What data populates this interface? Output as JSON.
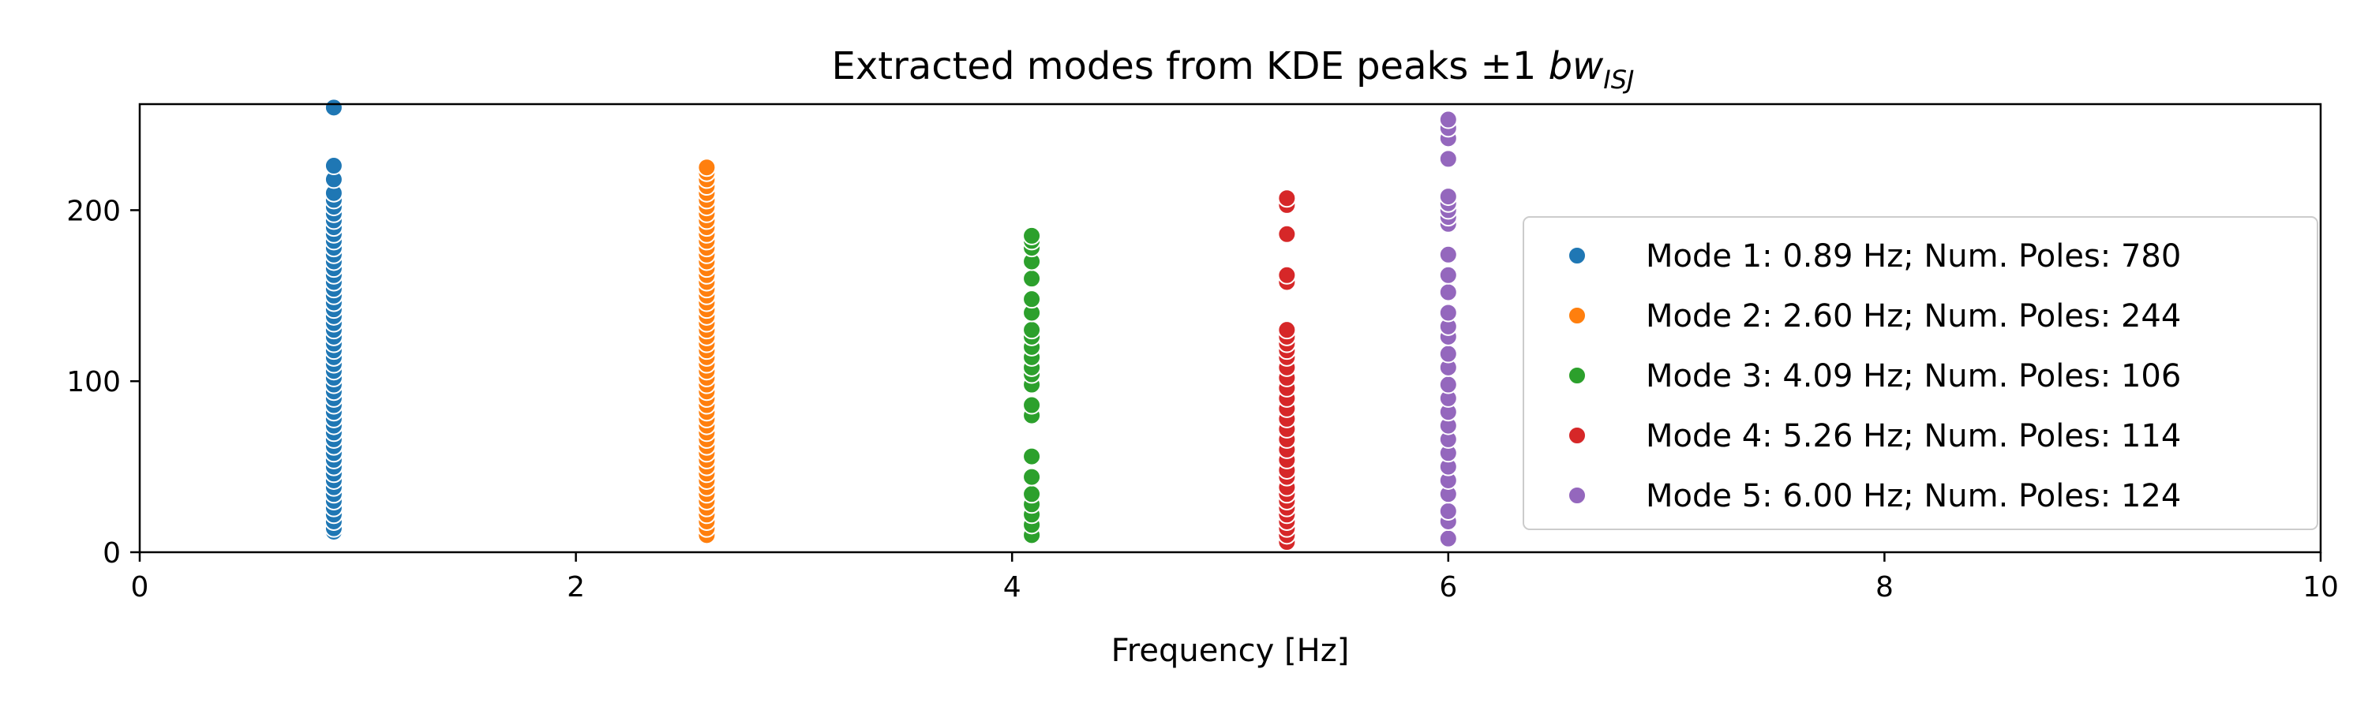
{
  "chart_data": {
    "type": "scatter",
    "title": {
      "prefix": "Extracted modes from KDE peaks ±1 ",
      "math": "bw",
      "math_subscript": "ISJ"
    },
    "xlabel": "Frequency [Hz]",
    "ylabel": "",
    "xlim": [
      0,
      10
    ],
    "ylim": [
      0,
      262
    ],
    "xticks": [
      "0",
      "2",
      "4",
      "6",
      "8",
      "10"
    ],
    "yticks": [
      "0",
      "100",
      "200"
    ],
    "grid": false,
    "legend_position": "right",
    "series": [
      {
        "name": "Mode 1: 0.89 Hz; Num. Poles: 780",
        "color": "#1f77b4",
        "x": 0.89,
        "y": [
          12,
          14,
          18,
          22,
          26,
          30,
          34,
          38,
          42,
          46,
          50,
          54,
          58,
          62,
          66,
          70,
          74,
          78,
          82,
          86,
          90,
          94,
          98,
          102,
          106,
          110,
          114,
          118,
          122,
          126,
          130,
          134,
          138,
          142,
          146,
          150,
          154,
          158,
          162,
          166,
          170,
          174,
          178,
          182,
          186,
          190,
          194,
          198,
          202,
          206,
          210,
          218,
          226,
          260
        ]
      },
      {
        "name": "Mode 2: 2.60 Hz; Num. Poles: 244",
        "color": "#ff7f0e",
        "x": 2.6,
        "y": [
          10,
          14,
          18,
          22,
          26,
          30,
          34,
          38,
          42,
          46,
          50,
          54,
          58,
          62,
          66,
          70,
          74,
          78,
          82,
          86,
          90,
          94,
          98,
          102,
          106,
          110,
          114,
          118,
          122,
          126,
          130,
          134,
          138,
          142,
          146,
          150,
          154,
          158,
          162,
          166,
          170,
          174,
          178,
          182,
          186,
          190,
          194,
          198,
          202,
          206,
          210,
          214,
          218,
          222,
          225
        ]
      },
      {
        "name": "Mode 3: 4.09 Hz; Num. Poles: 106",
        "color": "#2ca02c",
        "x": 4.09,
        "y": [
          10,
          16,
          22,
          28,
          34,
          44,
          56,
          80,
          86,
          98,
          104,
          108,
          114,
          120,
          126,
          130,
          140,
          148,
          160,
          170,
          178,
          182,
          185
        ]
      },
      {
        "name": "Mode 4: 5.26 Hz; Num. Poles: 114",
        "color": "#d62728",
        "x": 5.26,
        "y": [
          6,
          10,
          14,
          18,
          22,
          26,
          30,
          34,
          38,
          44,
          48,
          54,
          60,
          66,
          72,
          78,
          84,
          90,
          96,
          102,
          108,
          114,
          118,
          122,
          126,
          130,
          158,
          162,
          186,
          203,
          207
        ]
      },
      {
        "name": "Mode 5: 6.00 Hz; Num. Poles: 124",
        "color": "#9467bd",
        "x": 6.0,
        "y": [
          8,
          18,
          24,
          34,
          42,
          50,
          58,
          66,
          74,
          82,
          90,
          98,
          108,
          116,
          126,
          132,
          140,
          152,
          162,
          174,
          192,
          196,
          200,
          204,
          208,
          230,
          242,
          248,
          253
        ]
      }
    ]
  }
}
